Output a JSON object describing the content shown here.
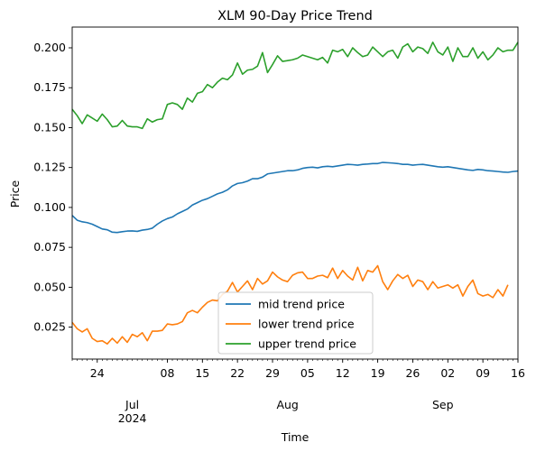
{
  "chart_data": {
    "type": "line",
    "title": "XLM 90-Day Price Trend",
    "xlabel": "Time",
    "ylabel": "Price",
    "xlim": [
      "2024-06-19",
      "2024-09-16"
    ],
    "ylim": [
      0.005,
      0.213
    ],
    "y_ticks": [
      0.025,
      0.05,
      0.075,
      0.1,
      0.125,
      0.15,
      0.175,
      0.2
    ],
    "y_tick_labels": [
      "0.025",
      "0.050",
      "0.075",
      "0.100",
      "0.125",
      "0.150",
      "0.175",
      "0.200"
    ],
    "x_minor_ticks": [
      {
        "date": "2024-06-24",
        "label": "24"
      },
      {
        "date": "2024-07-08",
        "label": "08"
      },
      {
        "date": "2024-07-15",
        "label": "15"
      },
      {
        "date": "2024-07-22",
        "label": "22"
      },
      {
        "date": "2024-07-29",
        "label": "29"
      },
      {
        "date": "2024-08-05",
        "label": "05"
      },
      {
        "date": "2024-08-12",
        "label": "12"
      },
      {
        "date": "2024-08-19",
        "label": "19"
      },
      {
        "date": "2024-08-26",
        "label": "26"
      },
      {
        "date": "2024-09-02",
        "label": "02"
      },
      {
        "date": "2024-09-09",
        "label": "09"
      },
      {
        "date": "2024-09-16",
        "label": "16"
      }
    ],
    "x_major_ticks": [
      {
        "date": "2024-07-01",
        "label": "Jul",
        "sublabel": "2024"
      },
      {
        "date": "2024-08-01",
        "label": "Aug",
        "sublabel": ""
      },
      {
        "date": "2024-09-01",
        "label": "Sep",
        "sublabel": ""
      }
    ],
    "legend_position": "lower-center",
    "grid": false,
    "series": [
      {
        "name": "mid trend price",
        "color": "#1f77b4",
        "values": [
          0.095,
          0.092,
          0.091,
          0.0905,
          0.0895,
          0.088,
          0.0865,
          0.086,
          0.0845,
          0.0843,
          0.0848,
          0.0852,
          0.0853,
          0.085,
          0.0858,
          0.0862,
          0.087,
          0.0895,
          0.0915,
          0.093,
          0.094,
          0.096,
          0.0975,
          0.099,
          0.1015,
          0.103,
          0.1045,
          0.1055,
          0.107,
          0.1085,
          0.1095,
          0.111,
          0.1135,
          0.115,
          0.1155,
          0.1165,
          0.118,
          0.118,
          0.119,
          0.121,
          0.1215,
          0.122,
          0.1225,
          0.123,
          0.123,
          0.1235,
          0.1245,
          0.125,
          0.1252,
          0.1248,
          0.1255,
          0.1258,
          0.1255,
          0.126,
          0.1265,
          0.127,
          0.1268,
          0.1265,
          0.127,
          0.1272,
          0.1275,
          0.1275,
          0.1282,
          0.128,
          0.1278,
          0.1275,
          0.127,
          0.127,
          0.1265,
          0.1268,
          0.127,
          0.1265,
          0.126,
          0.1255,
          0.1252,
          0.1255,
          0.125,
          0.1245,
          0.124,
          0.1235,
          0.1232,
          0.1238,
          0.1235,
          0.123,
          0.1228,
          0.1225,
          0.1222,
          0.122,
          0.1225,
          0.1228
        ]
      },
      {
        "name": "lower trend price",
        "color": "#ff7f0e",
        "values": [
          0.028,
          0.024,
          0.022,
          0.024,
          0.018,
          0.016,
          0.0165,
          0.0145,
          0.018,
          0.015,
          0.019,
          0.0155,
          0.0205,
          0.019,
          0.0215,
          0.0165,
          0.0225,
          0.0225,
          0.023,
          0.027,
          0.0265,
          0.027,
          0.0285,
          0.034,
          0.0355,
          0.034,
          0.0375,
          0.0405,
          0.042,
          0.0415,
          0.0455,
          0.0475,
          0.053,
          0.047,
          0.0505,
          0.054,
          0.0485,
          0.0555,
          0.052,
          0.054,
          0.0595,
          0.0565,
          0.0545,
          0.0535,
          0.0575,
          0.059,
          0.0595,
          0.0555,
          0.0555,
          0.057,
          0.0575,
          0.056,
          0.062,
          0.0555,
          0.0605,
          0.057,
          0.0545,
          0.0625,
          0.054,
          0.0605,
          0.0595,
          0.0635,
          0.0535,
          0.0485,
          0.054,
          0.058,
          0.0555,
          0.0575,
          0.0505,
          0.0545,
          0.0535,
          0.0485,
          0.0535,
          0.0495,
          0.0505,
          0.0515,
          0.0495,
          0.0515,
          0.0445,
          0.0505,
          0.0545,
          0.046,
          0.0445,
          0.0455,
          0.0435,
          0.0485,
          0.0445,
          0.0515
        ]
      },
      {
        "name": "upper trend price",
        "color": "#2ca02c",
        "values": [
          0.1615,
          0.1575,
          0.1525,
          0.158,
          0.156,
          0.154,
          0.1585,
          0.155,
          0.1505,
          0.151,
          0.1545,
          0.151,
          0.1505,
          0.1505,
          0.1495,
          0.1555,
          0.1535,
          0.155,
          0.1555,
          0.1645,
          0.1655,
          0.1645,
          0.1615,
          0.1685,
          0.166,
          0.1715,
          0.1725,
          0.177,
          0.175,
          0.1785,
          0.181,
          0.18,
          0.183,
          0.1905,
          0.1835,
          0.186,
          0.1865,
          0.1885,
          0.197,
          0.1845,
          0.1895,
          0.195,
          0.1915,
          0.192,
          0.1925,
          0.1935,
          0.1955,
          0.1945,
          0.1935,
          0.1925,
          0.194,
          0.1905,
          0.1985,
          0.1975,
          0.199,
          0.1945,
          0.2,
          0.197,
          0.1945,
          0.1955,
          0.2005,
          0.1975,
          0.1945,
          0.1975,
          0.1985,
          0.1935,
          0.2005,
          0.2025,
          0.1975,
          0.2005,
          0.1995,
          0.1965,
          0.2035,
          0.1975,
          0.1955,
          0.2005,
          0.1915,
          0.2,
          0.1945,
          0.1945,
          0.2,
          0.1935,
          0.1975,
          0.1925,
          0.1955,
          0.2,
          0.1975,
          0.1985,
          0.1985,
          0.2035
        ]
      }
    ]
  }
}
